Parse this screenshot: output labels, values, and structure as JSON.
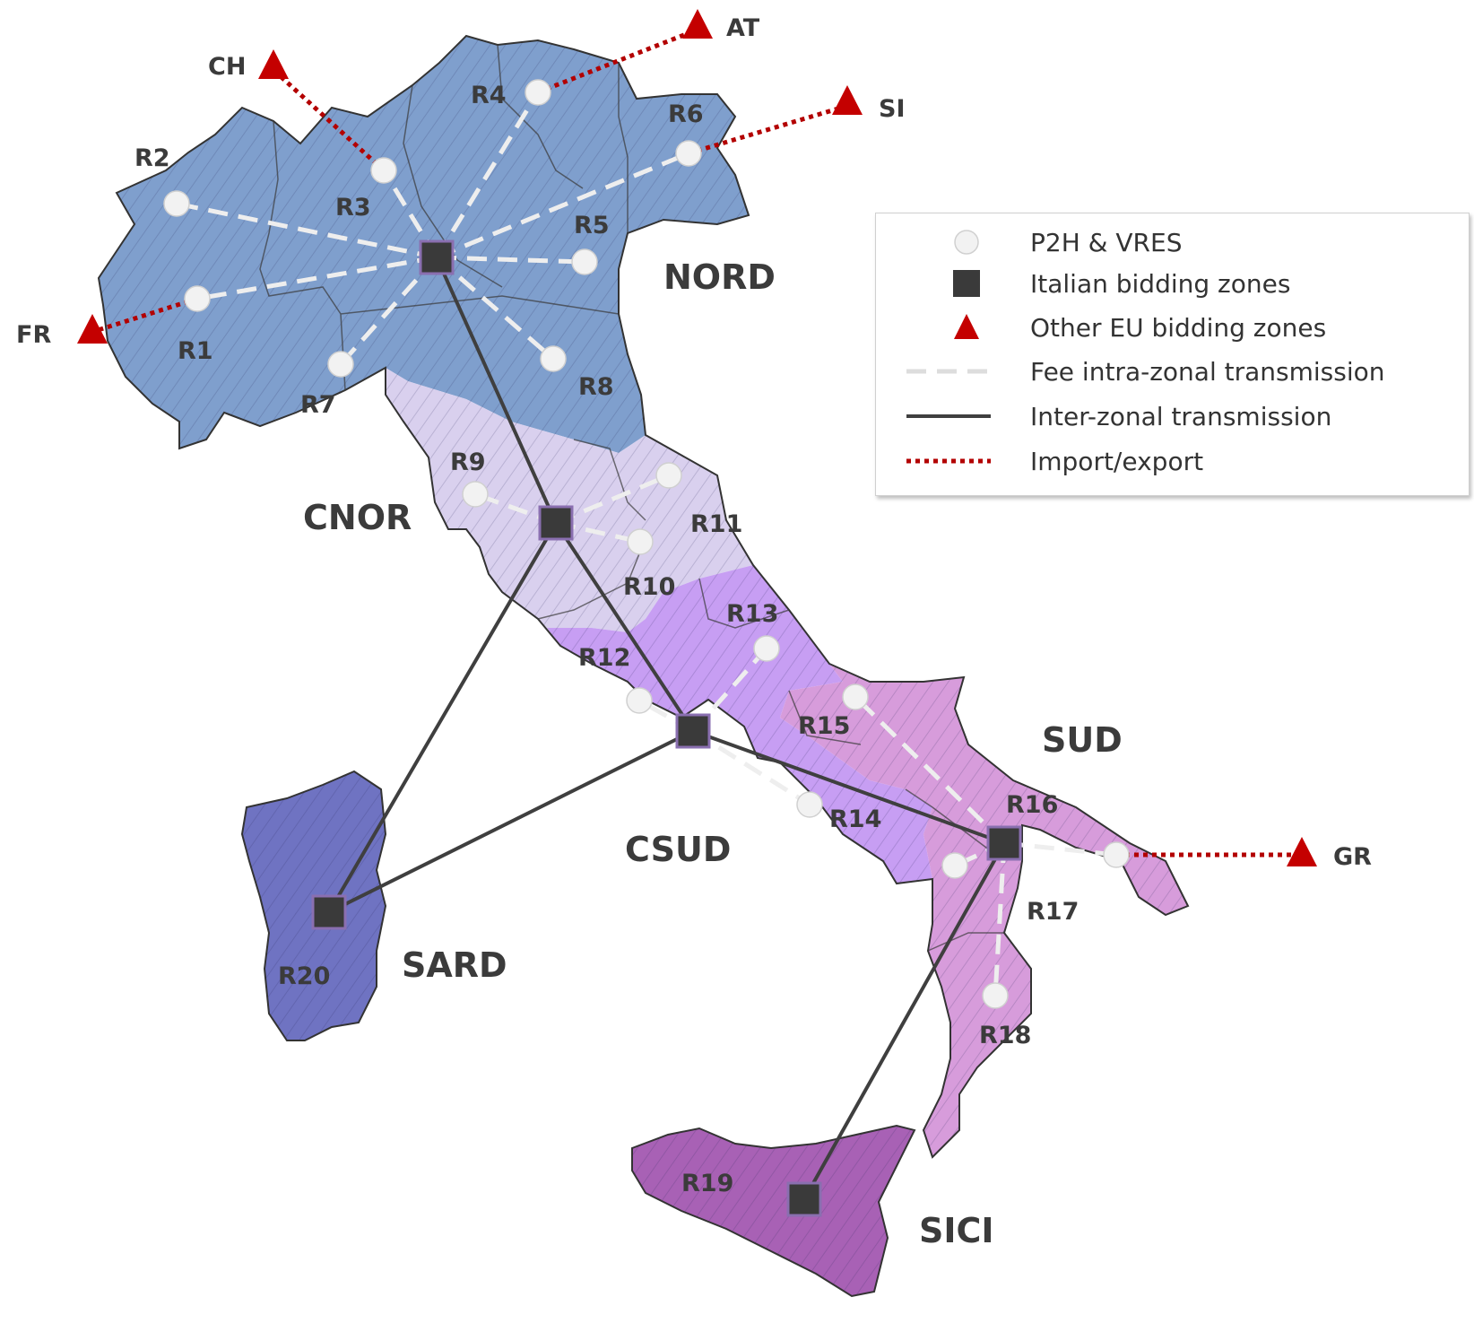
{
  "colors": {
    "nord": "#7f9fcd",
    "cnor": "#d9d0ee",
    "csud": "#c79ef3",
    "sud": "#d79cdb",
    "sici": "#a861b5",
    "sard": "#6f73c2",
    "inter_line": "#3f3f3f",
    "intra_line": "#eeeeee",
    "import_line": "#b30000",
    "triangle": "#c40000",
    "square": "#3a3a3a",
    "node": "#f2f2f2"
  },
  "zones": {
    "nord": "NORD",
    "cnor": "CNOR",
    "csud": "CSUD",
    "sud": "SUD",
    "sard": "SARD",
    "sici": "SICI"
  },
  "regions": [
    "R1",
    "R2",
    "R3",
    "R4",
    "R5",
    "R6",
    "R7",
    "R8",
    "R9",
    "R10",
    "R11",
    "R12",
    "R13",
    "R14",
    "R15",
    "R16",
    "R17",
    "R18",
    "R19",
    "R20"
  ],
  "countries": {
    "ch": "CH",
    "at": "AT",
    "si": "SI",
    "fr": "FR",
    "gr": "GR"
  },
  "legend": {
    "items": [
      {
        "label": "P2H & VRES",
        "symbol": "circle-node"
      },
      {
        "label": "Italian bidding zones",
        "symbol": "dark-square"
      },
      {
        "label": "Other EU bidding zones",
        "symbol": "red-triangle"
      },
      {
        "label": "Fee intra-zonal transmission",
        "symbol": "dashed-line"
      },
      {
        "label": "Inter-zonal transmission",
        "symbol": "solid-line"
      },
      {
        "label": "Import/export",
        "symbol": "dotted-line"
      }
    ]
  }
}
